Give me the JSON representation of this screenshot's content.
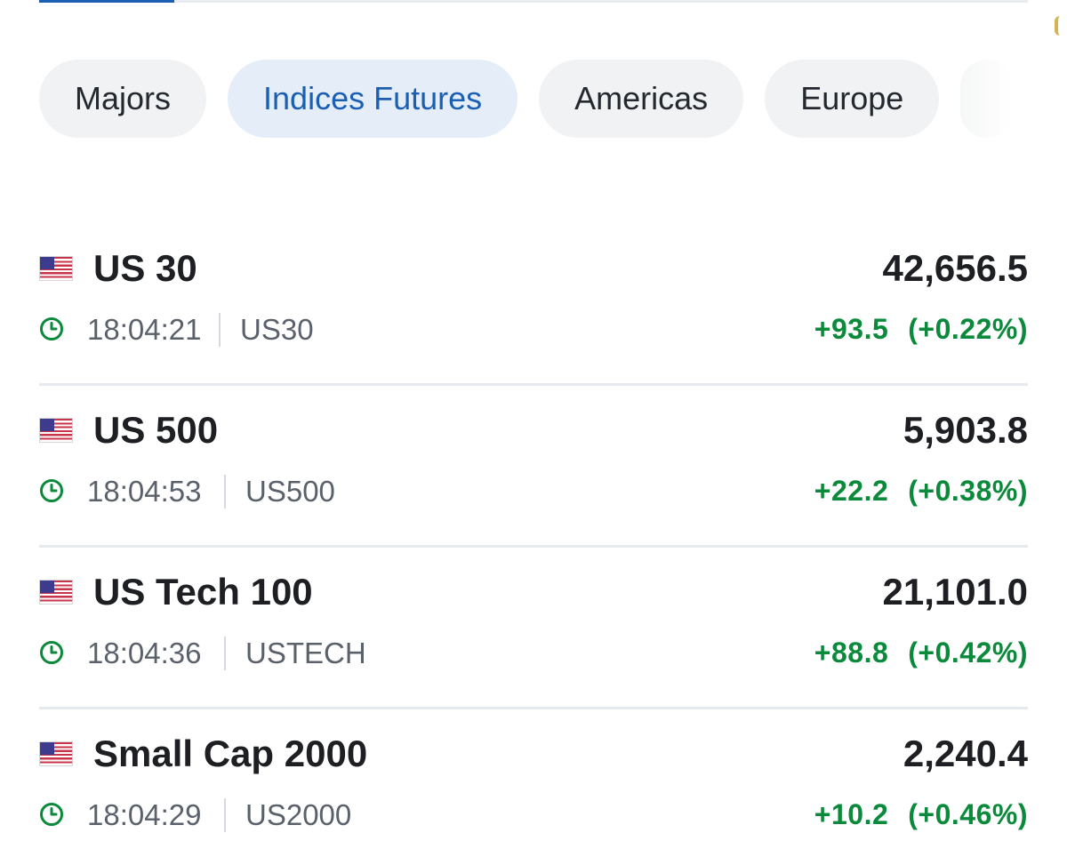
{
  "colors": {
    "accent": "#1a5fb4",
    "positive": "#0a8a3a",
    "muted_text": "#5b616b",
    "tab_bg": "#f1f2f4",
    "tab_active_bg": "#e5eef8"
  },
  "tabs": [
    {
      "label": "Majors",
      "active": false
    },
    {
      "label": "Indices Futures",
      "active": true
    },
    {
      "label": "Americas",
      "active": false
    },
    {
      "label": "Europe",
      "active": false
    }
  ],
  "instruments": [
    {
      "flag_icon": "us-flag-icon",
      "name": "US 30",
      "price": "42,656.5",
      "time": "18:04:21",
      "symbol": "US30",
      "change": "+93.5",
      "change_pct": "(+0.22%)"
    },
    {
      "flag_icon": "us-flag-icon",
      "name": "US 500",
      "price": "5,903.8",
      "time": "18:04:53",
      "symbol": "US500",
      "change": "+22.2",
      "change_pct": "(+0.38%)"
    },
    {
      "flag_icon": "us-flag-icon",
      "name": "US Tech 100",
      "price": "21,101.0",
      "time": "18:04:36",
      "symbol": "USTECH",
      "change": "+88.8",
      "change_pct": "(+0.42%)"
    },
    {
      "flag_icon": "us-flag-icon",
      "name": "Small Cap 2000",
      "price": "2,240.4",
      "time": "18:04:29",
      "symbol": "US2000",
      "change": "+10.2",
      "change_pct": "(+0.46%)"
    }
  ]
}
